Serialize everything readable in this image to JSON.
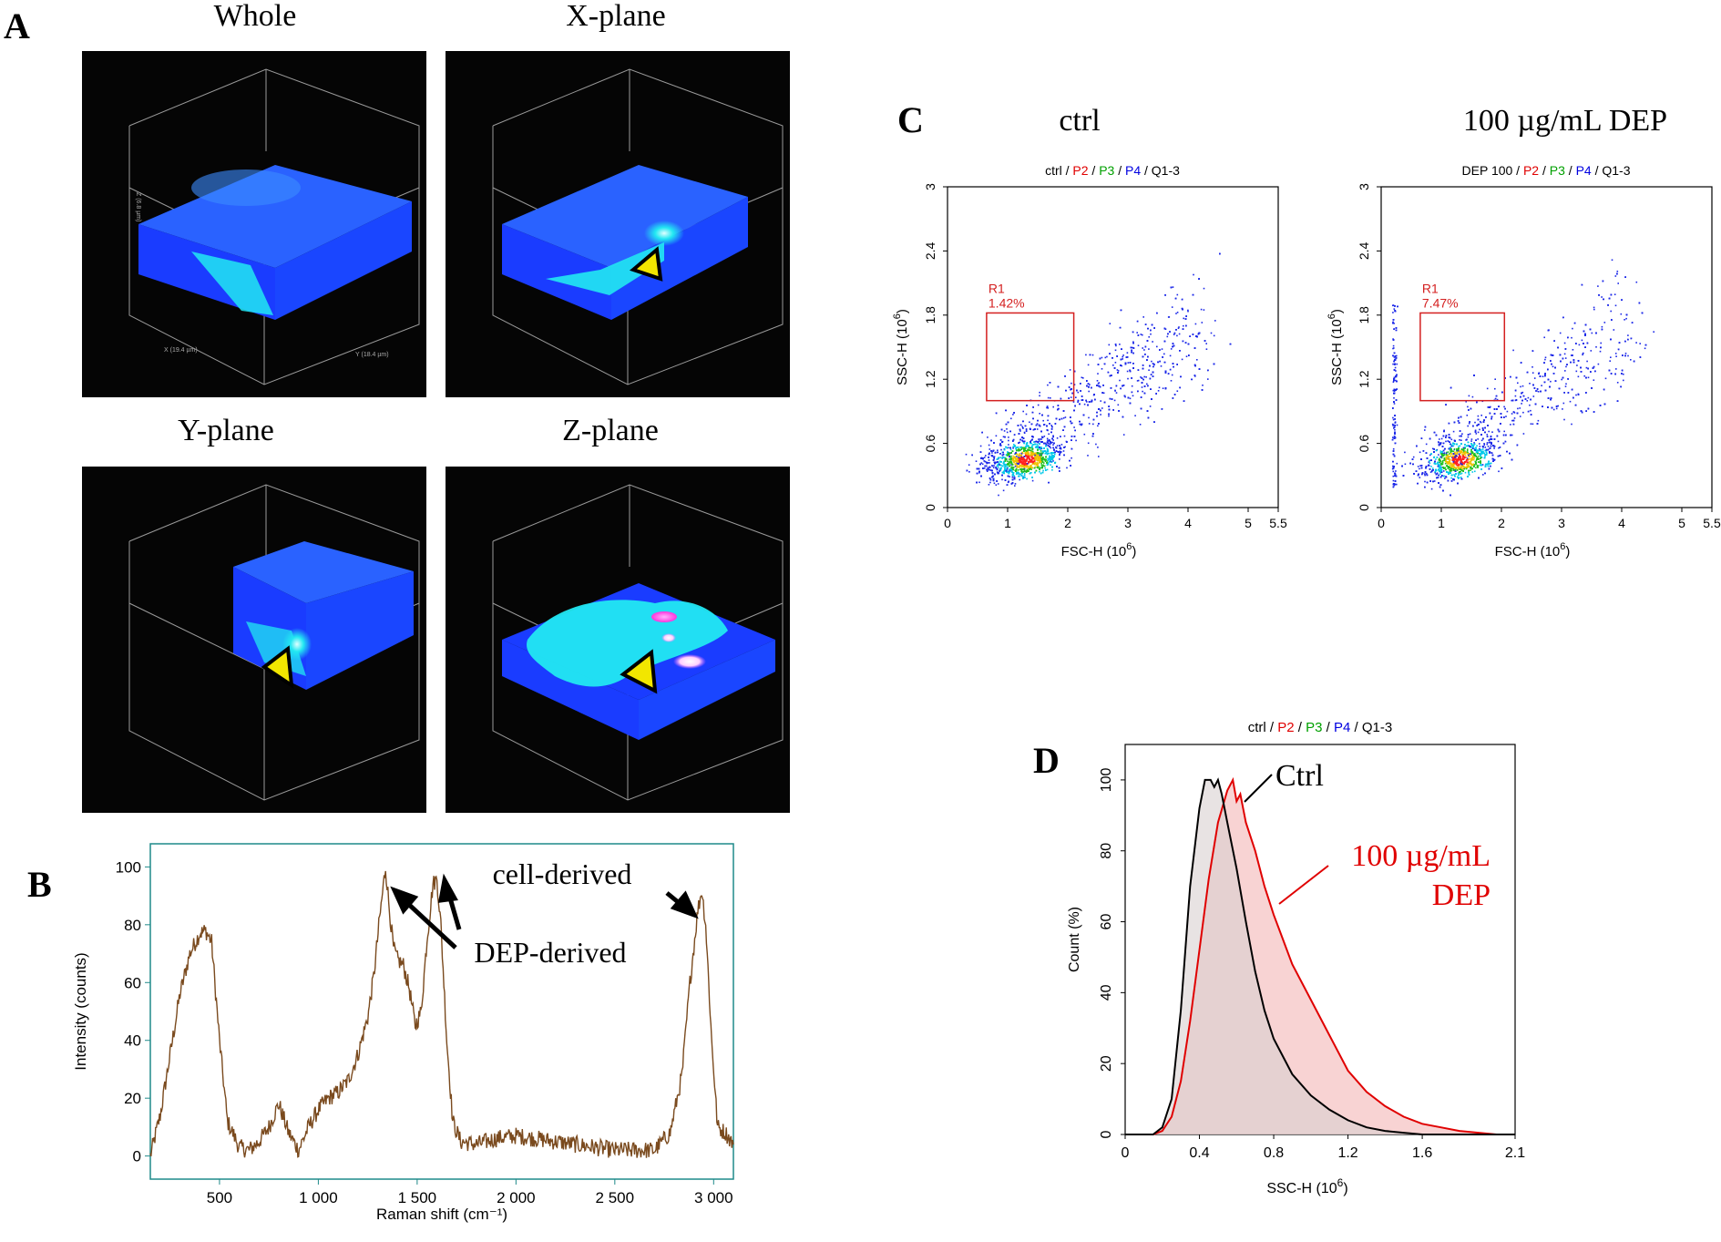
{
  "panel_letters": {
    "a": "A",
    "b": "B",
    "c": "C",
    "d": "D"
  },
  "panel_a": {
    "titles": [
      "Whole",
      "X-plane",
      "Y-plane",
      "Z-plane"
    ],
    "axis_labels": {
      "x": "X (19.4 µm)",
      "y": "Y (18.4 µm)",
      "z": "Z (6.8 µm)"
    },
    "colors": {
      "bg": "#050505",
      "box": "#1a3cff",
      "top": "#2a62ff",
      "cell": "#22e8f2",
      "hot": "#ff66ff",
      "marker": "#f2e600"
    }
  },
  "chart_data": [
    {
      "id": "B",
      "type": "line",
      "title": "",
      "xlabel": "Raman shift (cm⁻¹)",
      "ylabel": "Intensity (counts)",
      "xlim": [
        150,
        3100
      ],
      "ylim": [
        -8,
        108
      ],
      "xticks": [
        500,
        1000,
        1500,
        2000,
        2500,
        3000
      ],
      "xtick_labels": [
        "500",
        "1 000",
        "1 500",
        "2 000",
        "2 500",
        "3 000"
      ],
      "yticks": [
        0,
        20,
        40,
        60,
        80,
        100
      ],
      "series_color": "#7a4a1e",
      "series": [
        {
          "name": "spectrum",
          "x": [
            150,
            200,
            250,
            300,
            350,
            400,
            430,
            460,
            500,
            540,
            600,
            650,
            700,
            750,
            800,
            850,
            900,
            950,
            1000,
            1050,
            1100,
            1150,
            1200,
            1250,
            1280,
            1310,
            1340,
            1360,
            1380,
            1400,
            1430,
            1460,
            1490,
            1520,
            1550,
            1580,
            1600,
            1620,
            1650,
            1680,
            1720,
            1800,
            1900,
            2000,
            2100,
            2200,
            2300,
            2400,
            2500,
            2600,
            2700,
            2780,
            2840,
            2880,
            2920,
            2940,
            2960,
            2990,
            3020,
            3060,
            3100
          ],
          "y": [
            0,
            14,
            35,
            56,
            70,
            77,
            78,
            74,
            40,
            12,
            3,
            2,
            5,
            10,
            18,
            8,
            2,
            10,
            16,
            20,
            22,
            26,
            35,
            48,
            62,
            82,
            100,
            85,
            72,
            68,
            66,
            58,
            45,
            50,
            75,
            94,
            96,
            80,
            40,
            12,
            5,
            4,
            6,
            7,
            6,
            5,
            4,
            3,
            2,
            2,
            2,
            8,
            28,
            60,
            85,
            92,
            80,
            40,
            10,
            8,
            4
          ]
        }
      ],
      "annotations": {
        "cell": "cell-derived",
        "dep": "DEP-derived"
      }
    },
    {
      "id": "C-ctrl",
      "type": "scatter",
      "heading": "ctrl",
      "subtitle": [
        "ctrl",
        " / ",
        "P2",
        " / ",
        "P3",
        " / ",
        "P4",
        " / ",
        "Q1-3"
      ],
      "subtitle_colors": [
        "#000000",
        "#000000",
        "#e00000",
        "#000000",
        "#00a000",
        "#000000",
        "#0000e0",
        "#000000",
        "#000000"
      ],
      "xlabel": "FSC-H  (10",
      "ylabel": "SSC-H  (10",
      "exponent": "6",
      "xlim": [
        0,
        5.5
      ],
      "ylim": [
        0,
        3
      ],
      "xticks": [
        0,
        1,
        2,
        3,
        4,
        5,
        5.5
      ],
      "xtick_labels": [
        "0",
        "1",
        "2",
        "3",
        "4",
        "5",
        "5.5"
      ],
      "yticks": [
        0,
        0.6,
        1.2,
        1.8,
        2.4,
        3
      ],
      "ytick_labels": [
        "0",
        "0.6",
        "1.2",
        "1.8",
        "2.4",
        "3"
      ],
      "gate": {
        "name": "R1",
        "percent": "1.42%",
        "x": [
          0.65,
          2.1
        ],
        "y": [
          1.0,
          1.82
        ]
      },
      "seed": 7
    },
    {
      "id": "C-dep",
      "type": "scatter",
      "heading": "100 µg/mL  DEP",
      "subtitle": [
        "DEP 100",
        " / ",
        "P2",
        " / ",
        "P3",
        " / ",
        "P4",
        " / ",
        "Q1-3"
      ],
      "subtitle_colors": [
        "#000000",
        "#000000",
        "#e00000",
        "#000000",
        "#00a000",
        "#000000",
        "#0000e0",
        "#000000",
        "#000000"
      ],
      "xlabel": "FSC-H  (10",
      "ylabel": "SSC-H  (10",
      "exponent": "6",
      "xlim": [
        0,
        5.5
      ],
      "ylim": [
        0,
        3
      ],
      "xticks": [
        0,
        1,
        2,
        3,
        4,
        5,
        5.5
      ],
      "xtick_labels": [
        "0",
        "1",
        "2",
        "3",
        "4",
        "5",
        "5.5"
      ],
      "yticks": [
        0,
        0.6,
        1.2,
        1.8,
        2.4,
        3
      ],
      "ytick_labels": [
        "0",
        "0.6",
        "1.2",
        "1.8",
        "2.4",
        "3"
      ],
      "gate": {
        "name": "R1",
        "percent": "7.47%",
        "x": [
          0.65,
          2.05
        ],
        "y": [
          1.0,
          1.82
        ]
      },
      "seed": 13
    },
    {
      "id": "D",
      "type": "area",
      "subtitle": [
        "ctrl",
        " / ",
        "P2",
        " / ",
        "P3",
        " / ",
        "P4",
        " / ",
        "Q1-3"
      ],
      "subtitle_colors": [
        "#000000",
        "#000000",
        "#e00000",
        "#000000",
        "#00a000",
        "#000000",
        "#0000e0",
        "#000000",
        "#000000"
      ],
      "xlabel": "SSC-H  (10",
      "exponent": "6",
      "ylabel": "Count  (%)",
      "xlim": [
        0,
        2.1
      ],
      "ylim": [
        0,
        110
      ],
      "xticks": [
        0,
        0.4,
        0.8,
        1.2,
        1.6,
        2.1
      ],
      "xtick_labels": [
        "0",
        "0.4",
        "0.8",
        "1.2",
        "1.6",
        "2.1"
      ],
      "yticks": [
        0,
        20,
        40,
        60,
        80,
        100
      ],
      "series": [
        {
          "name": "Ctrl",
          "color": "#000000",
          "fill": "#d8d0d0",
          "x": [
            0,
            0.15,
            0.2,
            0.25,
            0.3,
            0.35,
            0.4,
            0.43,
            0.46,
            0.48,
            0.5,
            0.52,
            0.55,
            0.6,
            0.65,
            0.7,
            0.75,
            0.8,
            0.9,
            1.0,
            1.1,
            1.2,
            1.3,
            1.4,
            1.5,
            1.6,
            1.8,
            2.1
          ],
          "y": [
            0,
            0,
            2,
            10,
            35,
            70,
            92,
            100,
            100,
            98,
            100,
            96,
            88,
            75,
            60,
            46,
            35,
            27,
            17,
            11,
            7,
            4,
            2,
            1,
            0.5,
            0,
            0,
            0
          ]
        },
        {
          "name": "100 µg/mL DEP",
          "color": "#e00000",
          "fill": "#f5c4c4",
          "x": [
            0,
            0.15,
            0.2,
            0.25,
            0.3,
            0.35,
            0.4,
            0.45,
            0.5,
            0.55,
            0.58,
            0.6,
            0.62,
            0.65,
            0.7,
            0.75,
            0.8,
            0.85,
            0.9,
            1.0,
            1.1,
            1.2,
            1.3,
            1.4,
            1.5,
            1.6,
            1.7,
            1.8,
            2.0,
            2.1
          ],
          "y": [
            0,
            0,
            1,
            5,
            15,
            32,
            52,
            72,
            88,
            97,
            100,
            94,
            96,
            88,
            80,
            70,
            62,
            55,
            48,
            38,
            28,
            18,
            12,
            8,
            5,
            3,
            2,
            1,
            0,
            0
          ]
        }
      ],
      "labels": {
        "ctrl": "Ctrl",
        "dep_line1": "100 µg/mL",
        "dep_line2": "DEP"
      }
    }
  ]
}
